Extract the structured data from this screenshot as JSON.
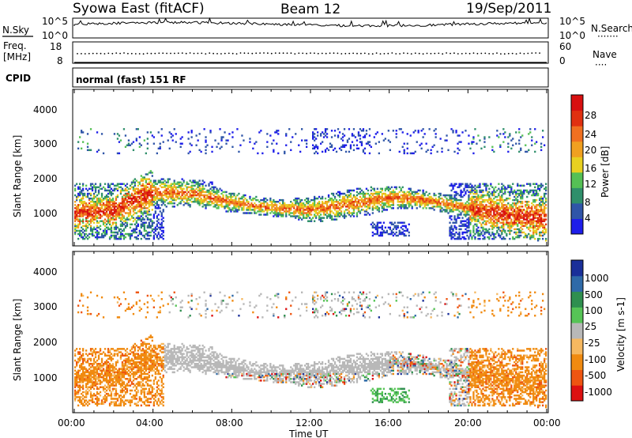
{
  "header": {
    "title": "Syowa East (fitACF)",
    "beam": "Beam 12",
    "date": "19/Sep/2011"
  },
  "noise_panel": {
    "left_label": "N.Sky",
    "right_label": "N.Search",
    "left_ticks": [
      "10^5",
      "10^0"
    ],
    "right_ticks": [
      "10^5",
      "10^0"
    ],
    "legend_dots": "·······"
  },
  "freq_panel": {
    "left_label_1": "Freq.",
    "left_label_2": "[MHz]",
    "left_ticks": [
      "18",
      "8"
    ],
    "right_label": "Nave",
    "right_ticks": [
      "60",
      "0"
    ],
    "legend_dots": "····"
  },
  "cpid_panel": {
    "label": "CPID",
    "value": "normal (fast) 151 RF"
  },
  "time_axis": {
    "label": "Time UT",
    "ticks": [
      "00:00",
      "04:00",
      "08:00",
      "12:00",
      "16:00",
      "20:00",
      "00:00"
    ]
  },
  "colors": {
    "power": [
      "#1e1eea",
      "#2f55a8",
      "#2f8f6b",
      "#55c055",
      "#e8d020",
      "#f0a020",
      "#f07020",
      "#e03010",
      "#d81010"
    ],
    "velocity": [
      "#dd1111",
      "#ee5511",
      "#f08a10",
      "#f6b860",
      "#b8b8b8",
      "#56c456",
      "#2f8f4f",
      "#2f6aa8",
      "#1a2f99"
    ]
  },
  "chart_data": [
    {
      "type": "heatmap",
      "title": "Power",
      "ylabel": "Slant Range [km]",
      "xlabel": "Time UT",
      "ylim": [
        180,
        4500
      ],
      "y_ticks": [
        "1000",
        "2000",
        "3000",
        "4000"
      ],
      "colorbar_label": "Power [dB]",
      "colorbar_ticks": [
        "4",
        "8",
        "12",
        "16",
        "20",
        "24",
        "28"
      ],
      "colorbar_range": [
        0,
        30
      ],
      "x_range_hours": [
        0,
        24
      ],
      "main_echo_band": [
        {
          "x": 0,
          "y": 1050
        },
        {
          "x": 2,
          "y": 1150
        },
        {
          "x": 4,
          "y": 1650
        },
        {
          "x": 6,
          "y": 1600
        },
        {
          "x": 8,
          "y": 1350
        },
        {
          "x": 10,
          "y": 1200
        },
        {
          "x": 12,
          "y": 1150
        },
        {
          "x": 14,
          "y": 1300
        },
        {
          "x": 16,
          "y": 1500
        },
        {
          "x": 18,
          "y": 1400
        },
        {
          "x": 20,
          "y": 1200
        },
        {
          "x": 22,
          "y": 1000
        },
        {
          "x": 24,
          "y": 900
        }
      ]
    },
    {
      "type": "heatmap",
      "title": "Velocity",
      "ylabel": "Slant Range [km]",
      "xlabel": "Time UT",
      "ylim": [
        180,
        4500
      ],
      "y_ticks": [
        "1000",
        "2000",
        "3000",
        "4000"
      ],
      "colorbar_label": "Velocity [m s-1]",
      "colorbar_ticks": [
        "1000",
        "500",
        "100",
        "25",
        "-25",
        "-100",
        "-500",
        "-1000"
      ],
      "colorbar_range": [
        -1000,
        1000
      ],
      "x_range_hours": [
        0,
        24
      ]
    }
  ]
}
